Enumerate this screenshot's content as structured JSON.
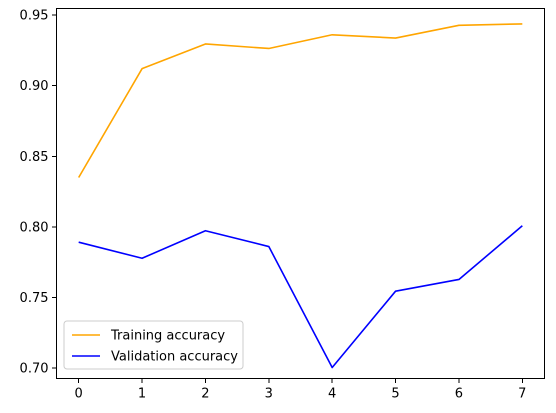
{
  "chart_data": {
    "type": "line",
    "title": "",
    "xlabel": "",
    "ylabel": "",
    "x": [
      0,
      1,
      2,
      3,
      4,
      5,
      6,
      7
    ],
    "xticks": [
      "0",
      "1",
      "2",
      "3",
      "4",
      "5",
      "6",
      "7"
    ],
    "yticks": [
      "0.70",
      "0.75",
      "0.80",
      "0.85",
      "0.90",
      "0.95"
    ],
    "xlim": [
      -0.35,
      7.35
    ],
    "ylim": [
      0.6927,
      0.9546
    ],
    "grid": false,
    "legend_position": "lower-left",
    "series": [
      {
        "name": "Training accuracy",
        "color": "#ffa500",
        "values": [
          0.835,
          0.912,
          0.9295,
          0.9263,
          0.936,
          0.9337,
          0.9427,
          0.9437
        ]
      },
      {
        "name": "Validation accuracy",
        "color": "#0000ff",
        "values": [
          0.7892,
          0.7778,
          0.7973,
          0.7861,
          0.7005,
          0.7545,
          0.7628,
          0.8008
        ]
      }
    ]
  }
}
